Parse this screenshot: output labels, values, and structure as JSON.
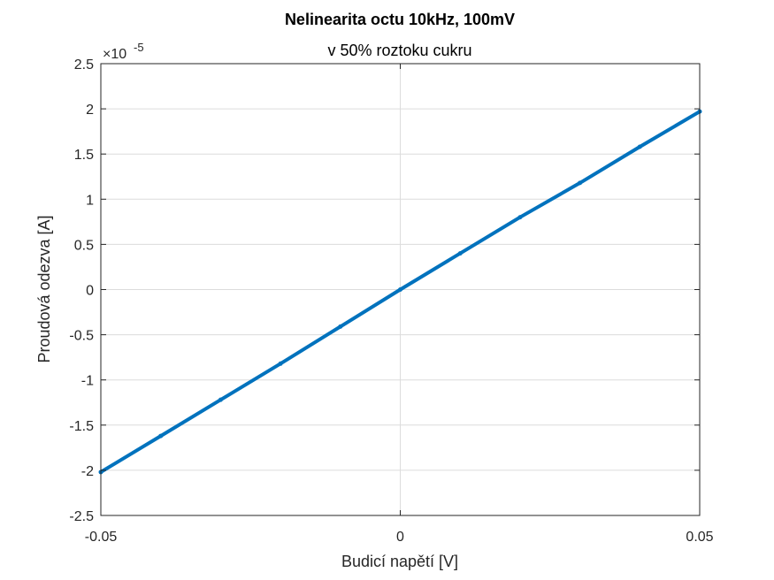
{
  "chart_data": {
    "type": "line",
    "title": "Nelinearita octu 10kHz, 100mV",
    "subtitle": "v 50% roztoku cukru",
    "xlabel": "Budicí napětí [V]",
    "ylabel": "Proudová odezva [A]",
    "y_exponent_base": "×10",
    "y_exponent_power": "-5",
    "xlim": [
      -0.05,
      0.05
    ],
    "ylim": [
      -2.5,
      2.5
    ],
    "y_scale_note": "y values in units of 1e-5 A",
    "x_ticks": [
      -0.05,
      0,
      0.05
    ],
    "x_tick_labels": [
      "-0.05",
      "0",
      "0.05"
    ],
    "y_ticks": [
      -2.5,
      -2,
      -1.5,
      -1,
      -0.5,
      0,
      0.5,
      1,
      1.5,
      2,
      2.5
    ],
    "y_tick_labels": [
      "-2.5",
      "-2",
      "-1.5",
      "-1",
      "-0.5",
      "0",
      "0.5",
      "1",
      "1.5",
      "2",
      "2.5"
    ],
    "grid": true,
    "line_color": "#0072BD",
    "series": [
      {
        "x": [
          -0.05,
          -0.04,
          -0.03,
          -0.02,
          -0.01,
          0,
          0.01,
          0.02,
          0.03,
          0.04,
          0.05
        ],
        "y": [
          -2.02,
          -1.62,
          -1.22,
          -0.82,
          -0.41,
          0.0,
          0.4,
          0.8,
          1.18,
          1.58,
          1.97
        ]
      }
    ]
  }
}
